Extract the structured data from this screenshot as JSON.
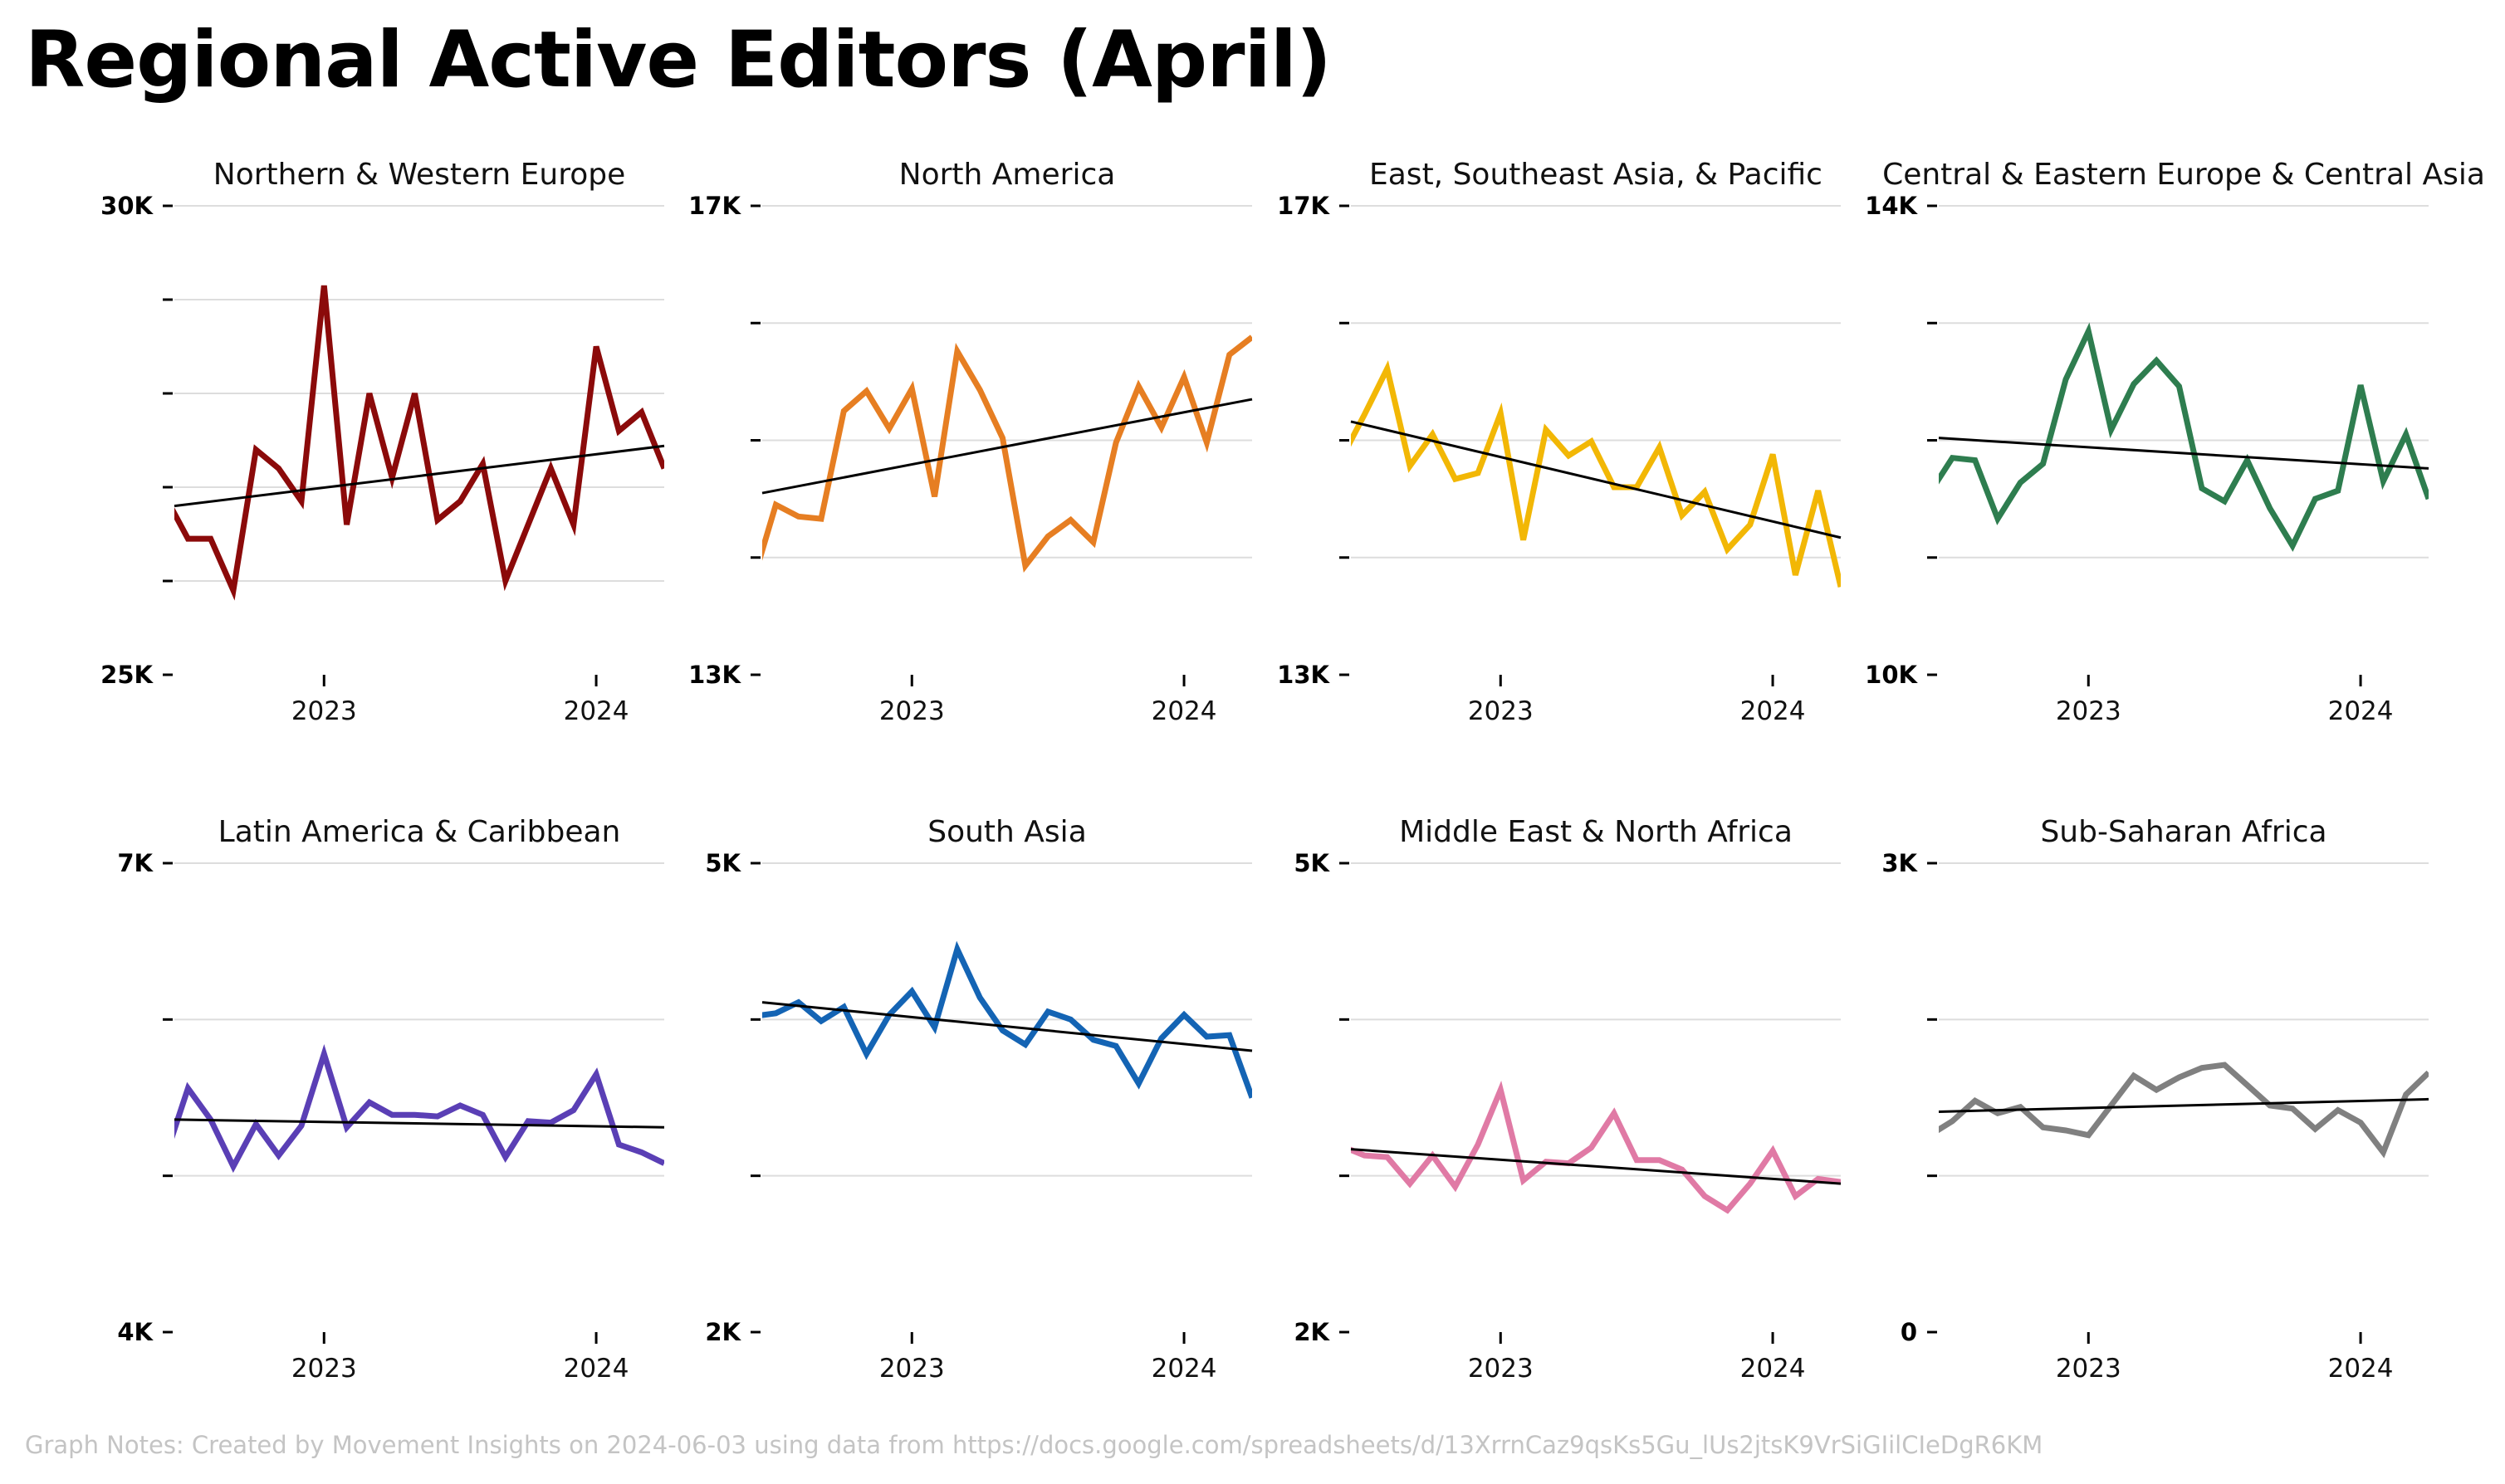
{
  "title": "Regional Active Editors (April)",
  "note": "Graph Notes: Created by Movement Insights on 2024-06-03 using data from https://docs.google.com/spreadsheets/d/13XrrnCaz9qsKs5Gu_lUs2jtsK9VrSiGIilCIeDgR6KM",
  "chart_data": [
    {
      "type": "line",
      "title": "Northern & Western Europe",
      "color": "#8b0a0a",
      "ylim": [
        25000,
        30000
      ],
      "yticks": [
        {
          "value": 25000,
          "label": "25K"
        },
        {
          "value": 26000,
          "label": ""
        },
        {
          "value": 27000,
          "label": ""
        },
        {
          "value": 28000,
          "label": ""
        },
        {
          "value": 29000,
          "label": ""
        },
        {
          "value": 30000,
          "label": "30K"
        }
      ],
      "xlim": [
        2022.45,
        2024.25
      ],
      "xticks": [
        {
          "value": 2023,
          "label": "2023"
        },
        {
          "value": 2024,
          "label": "2024"
        }
      ],
      "x": [
        2022.4167,
        2022.5,
        2022.5833,
        2022.6667,
        2022.75,
        2022.8333,
        2022.9167,
        2023.0,
        2023.0833,
        2023.1667,
        2023.25,
        2023.3333,
        2023.4167,
        2023.5,
        2023.5833,
        2023.6667,
        2023.75,
        2023.8333,
        2023.9167,
        2024.0,
        2024.0833,
        2024.1667,
        2024.25
      ],
      "values": [
        26900,
        26450,
        26450,
        25900,
        27400,
        27200,
        26850,
        29150,
        26600,
        28000,
        27100,
        28000,
        26650,
        26850,
        27250,
        26000,
        26600,
        27200,
        26600,
        28500,
        27600,
        27800,
        27200
      ],
      "trend": [
        26800,
        27440
      ]
    },
    {
      "type": "line",
      "title": "North America",
      "color": "#e67e22",
      "ylim": [
        13000,
        17000
      ],
      "yticks": [
        {
          "value": 13000,
          "label": "13K"
        },
        {
          "value": 14000,
          "label": ""
        },
        {
          "value": 15000,
          "label": ""
        },
        {
          "value": 16000,
          "label": ""
        },
        {
          "value": 17000,
          "label": "17K"
        }
      ],
      "xlim": [
        2022.45,
        2024.25
      ],
      "xticks": [
        {
          "value": 2023,
          "label": "2023"
        },
        {
          "value": 2024,
          "label": "2024"
        }
      ],
      "x": [
        2022.4167,
        2022.5,
        2022.5833,
        2022.6667,
        2022.75,
        2022.8333,
        2022.9167,
        2023.0,
        2023.0833,
        2023.1667,
        2023.25,
        2023.3333,
        2023.4167,
        2023.5,
        2023.5833,
        2023.6667,
        2023.75,
        2023.8333,
        2023.9167,
        2024.0,
        2024.0833,
        2024.1667,
        2024.25
      ],
      "values": [
        13800,
        14450,
        14350,
        14330,
        15250,
        15420,
        15100,
        15440,
        14520,
        15760,
        15430,
        15020,
        13930,
        14180,
        14320,
        14130,
        14980,
        15460,
        15110,
        15540,
        14980,
        15730,
        15880
      ],
      "trend": [
        14550,
        15350
      ]
    },
    {
      "type": "line",
      "title": "East, Southeast Asia, & Pacific",
      "color": "#f2b705",
      "ylim": [
        13000,
        17000
      ],
      "yticks": [
        {
          "value": 13000,
          "label": "13K"
        },
        {
          "value": 14000,
          "label": ""
        },
        {
          "value": 15000,
          "label": ""
        },
        {
          "value": 16000,
          "label": ""
        },
        {
          "value": 17000,
          "label": "17K"
        }
      ],
      "xlim": [
        2022.45,
        2024.25
      ],
      "xticks": [
        {
          "value": 2023,
          "label": "2023"
        },
        {
          "value": 2024,
          "label": "2024"
        }
      ],
      "x": [
        2022.4167,
        2022.5,
        2022.5833,
        2022.6667,
        2022.75,
        2022.8333,
        2022.9167,
        2023.0,
        2023.0833,
        2023.1667,
        2023.25,
        2023.3333,
        2023.4167,
        2023.5,
        2023.5833,
        2023.6667,
        2023.75,
        2023.8333,
        2023.9167,
        2024.0,
        2024.0833,
        2024.1667,
        2024.25
      ],
      "values": [
        14850,
        15220,
        15610,
        14780,
        15050,
        14670,
        14720,
        15230,
        14150,
        15090,
        14870,
        14990,
        14600,
        14600,
        14940,
        14360,
        14560,
        14070,
        14280,
        14880,
        13850,
        14570,
        13750
      ],
      "trend": [
        15160,
        14170
      ]
    },
    {
      "type": "line",
      "title": "Central & Eastern Europe & Central Asia",
      "color": "#2e7d4f",
      "ylim": [
        10000,
        14000
      ],
      "yticks": [
        {
          "value": 10000,
          "label": "10K"
        },
        {
          "value": 11000,
          "label": ""
        },
        {
          "value": 12000,
          "label": ""
        },
        {
          "value": 13000,
          "label": ""
        },
        {
          "value": 14000,
          "label": "14K"
        }
      ],
      "xlim": [
        2022.45,
        2024.25
      ],
      "xticks": [
        {
          "value": 2023,
          "label": "2023"
        },
        {
          "value": 2024,
          "label": "2024"
        }
      ],
      "x": [
        2022.4167,
        2022.5,
        2022.5833,
        2022.6667,
        2022.75,
        2022.8333,
        2022.9167,
        2023.0,
        2023.0833,
        2023.1667,
        2023.25,
        2023.3333,
        2023.4167,
        2023.5,
        2023.5833,
        2023.6667,
        2023.75,
        2023.8333,
        2023.9167,
        2024.0,
        2024.0833,
        2024.1667,
        2024.25
      ],
      "values": [
        11550,
        11850,
        11830,
        11330,
        11640,
        11800,
        12520,
        12930,
        12090,
        12480,
        12680,
        12460,
        11590,
        11480,
        11830,
        11420,
        11100,
        11500,
        11570,
        12470,
        11650,
        12050,
        11500
      ],
      "trend": [
        12020,
        11760
      ]
    },
    {
      "type": "line",
      "title": "Latin America & Caribbean",
      "color": "#5a3fb5",
      "ylim": [
        4000,
        7000
      ],
      "yticks": [
        {
          "value": 4000,
          "label": "4K"
        },
        {
          "value": 5000,
          "label": ""
        },
        {
          "value": 6000,
          "label": ""
        },
        {
          "value": 7000,
          "label": "7K"
        }
      ],
      "xlim": [
        2022.45,
        2024.25
      ],
      "xticks": [
        {
          "value": 2023,
          "label": "2023"
        },
        {
          "value": 2024,
          "label": "2024"
        }
      ],
      "x": [
        2022.4167,
        2022.5,
        2022.5833,
        2022.6667,
        2022.75,
        2022.8333,
        2022.9167,
        2023.0,
        2023.0833,
        2023.1667,
        2023.25,
        2023.3333,
        2023.4167,
        2023.5,
        2023.5833,
        2023.6667,
        2023.75,
        2023.8333,
        2023.9167,
        2024.0,
        2024.0833,
        2024.1667,
        2024.25
      ],
      "values": [
        5120,
        5560,
        5360,
        5060,
        5330,
        5130,
        5320,
        5780,
        5310,
        5470,
        5390,
        5390,
        5380,
        5450,
        5390,
        5120,
        5350,
        5340,
        5420,
        5650,
        5200,
        5150,
        5080
      ],
      "trend": [
        5360,
        5310
      ]
    },
    {
      "type": "line",
      "title": "South Asia",
      "color": "#1464b4",
      "ylim": [
        2000,
        5000
      ],
      "yticks": [
        {
          "value": 2000,
          "label": "2K"
        },
        {
          "value": 3000,
          "label": ""
        },
        {
          "value": 4000,
          "label": ""
        },
        {
          "value": 5000,
          "label": "5K"
        }
      ],
      "xlim": [
        2022.45,
        2024.25
      ],
      "xticks": [
        {
          "value": 2023,
          "label": "2023"
        },
        {
          "value": 2024,
          "label": "2024"
        }
      ],
      "x": [
        2022.4167,
        2022.5,
        2022.5833,
        2022.6667,
        2022.75,
        2022.8333,
        2022.9167,
        2023.0,
        2023.0833,
        2023.1667,
        2023.25,
        2023.3333,
        2023.4167,
        2023.5,
        2023.5833,
        2023.6667,
        2023.75,
        2023.8333,
        2023.9167,
        2024.0,
        2024.0833,
        2024.1667,
        2024.25
      ],
      "values": [
        4020,
        4040,
        4110,
        3990,
        4080,
        3780,
        4030,
        4180,
        3950,
        4450,
        4140,
        3930,
        3840,
        4050,
        4000,
        3870,
        3830,
        3590,
        3880,
        4030,
        3890,
        3900,
        3500
      ],
      "trend": [
        4110,
        3800
      ]
    },
    {
      "type": "line",
      "title": "Middle East & North Africa",
      "color": "#e07aa5",
      "ylim": [
        2000,
        5000
      ],
      "yticks": [
        {
          "value": 2000,
          "label": "2K"
        },
        {
          "value": 3000,
          "label": ""
        },
        {
          "value": 4000,
          "label": ""
        },
        {
          "value": 5000,
          "label": "5K"
        }
      ],
      "xlim": [
        2022.45,
        2024.25
      ],
      "xticks": [
        {
          "value": 2023,
          "label": "2023"
        },
        {
          "value": 2024,
          "label": "2024"
        }
      ],
      "x": [
        2022.4167,
        2022.5,
        2022.5833,
        2022.6667,
        2022.75,
        2022.8333,
        2022.9167,
        2023.0,
        2023.0833,
        2023.1667,
        2023.25,
        2023.3333,
        2023.4167,
        2023.5,
        2023.5833,
        2023.6667,
        2023.75,
        2023.8333,
        2023.9167,
        2024.0,
        2024.0833,
        2024.1667,
        2024.25
      ],
      "values": [
        3190,
        3130,
        3120,
        2950,
        3130,
        2930,
        3200,
        3550,
        2970,
        3090,
        3080,
        3180,
        3400,
        3100,
        3100,
        3040,
        2870,
        2780,
        2950,
        3160,
        2870,
        2980,
        2960
      ],
      "trend": [
        3170,
        2950
      ]
    },
    {
      "type": "line",
      "title": "Sub-Saharan Africa",
      "color": "#808080",
      "ylim": [
        0,
        3000
      ],
      "yticks": [
        {
          "value": 0,
          "label": "0"
        },
        {
          "value": 1000,
          "label": ""
        },
        {
          "value": 2000,
          "label": ""
        },
        {
          "value": 3000,
          "label": "3K"
        }
      ],
      "xlim": [
        2022.45,
        2024.25
      ],
      "xticks": [
        {
          "value": 2023,
          "label": "2023"
        },
        {
          "value": 2024,
          "label": "2024"
        }
      ],
      "x": [
        2022.4167,
        2022.5,
        2022.5833,
        2022.6667,
        2022.75,
        2022.8333,
        2022.9167,
        2023.0,
        2023.0833,
        2023.1667,
        2023.25,
        2023.3333,
        2023.4167,
        2023.5,
        2023.5833,
        2023.6667,
        2023.75,
        2023.8333,
        2023.9167,
        2024.0,
        2024.0833,
        2024.1667,
        2024.25
      ],
      "values": [
        1260,
        1350,
        1480,
        1400,
        1440,
        1310,
        1290,
        1260,
        1450,
        1640,
        1550,
        1630,
        1690,
        1710,
        1580,
        1450,
        1430,
        1300,
        1420,
        1340,
        1150,
        1520,
        1660
      ],
      "trend": [
        1410,
        1490
      ]
    }
  ]
}
